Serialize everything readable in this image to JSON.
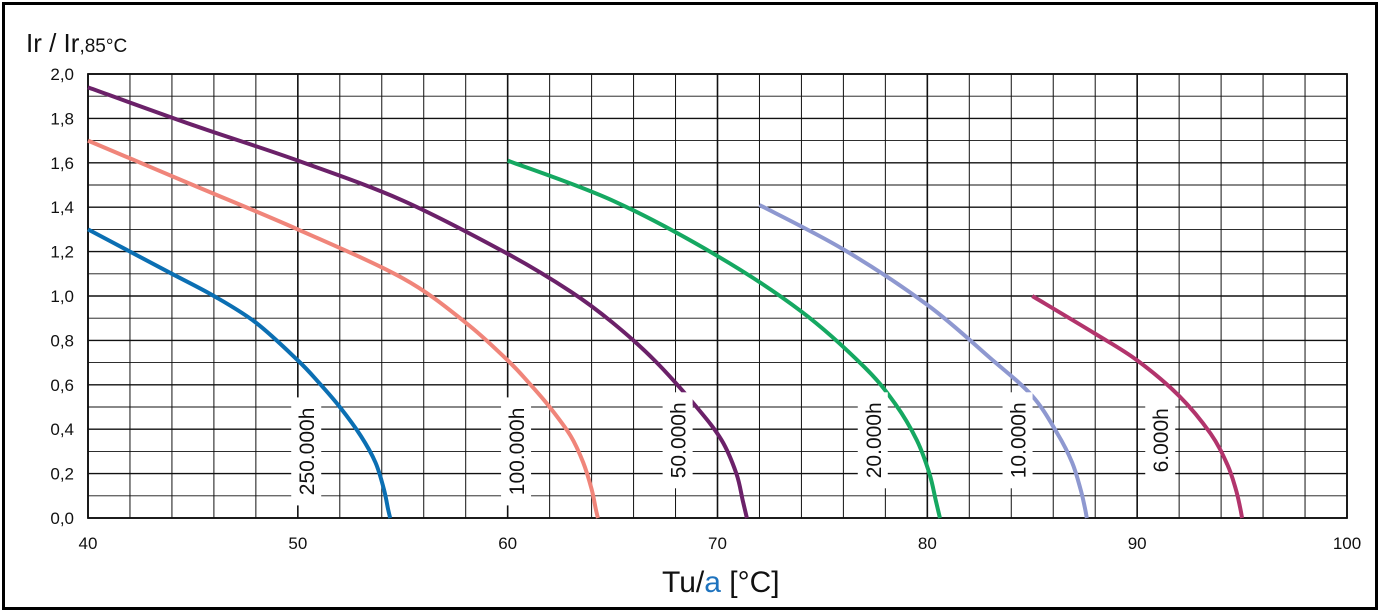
{
  "chart_data": {
    "type": "line",
    "ylabel_main": "Ir / Ir",
    "ylabel_sub": ",85°C",
    "xlabel_main": "Tu/",
    "xlabel_accent": "a",
    "xlabel_unit": " [°C]",
    "xlabel_accent_color": "#1e73be",
    "xlim": [
      40,
      100
    ],
    "ylim": [
      0,
      2.0
    ],
    "x_ticks": [
      "40",
      "50",
      "60",
      "70",
      "80",
      "90",
      "100"
    ],
    "y_ticks": [
      "0,0",
      "0,2",
      "0,4",
      "0,6",
      "0,8",
      "1,0",
      "1,2",
      "1,4",
      "1,6",
      "1,8",
      "2,0"
    ],
    "grid": true,
    "series": [
      {
        "name": "250.000h",
        "color": "#0b6fb3",
        "label_x": 50.4,
        "label_y": 0.3,
        "x": [
          40,
          42,
          44,
          46,
          48,
          50,
          51,
          52,
          53,
          53.7,
          54.1,
          54.3,
          54.4
        ],
        "y": [
          1.3,
          1.2,
          1.1,
          1.0,
          0.88,
          0.71,
          0.61,
          0.5,
          0.37,
          0.25,
          0.13,
          0.04,
          0.0
        ]
      },
      {
        "name": "100.000h",
        "color": "#f0857a",
        "label_x": 60.4,
        "label_y": 0.3,
        "x": [
          40,
          45,
          50,
          55,
          58,
          60,
          61,
          62,
          63,
          63.6,
          64.0,
          64.2,
          64.3
        ],
        "y": [
          1.7,
          1.5,
          1.3,
          1.08,
          0.88,
          0.71,
          0.61,
          0.5,
          0.37,
          0.25,
          0.13,
          0.04,
          0.0
        ]
      },
      {
        "name": "50.000h",
        "color": "#6b2169",
        "label_x": 68.1,
        "label_y": 0.35,
        "x": [
          40,
          45,
          50,
          55,
          60,
          63,
          65,
          67,
          69,
          70.2,
          70.9,
          71.2,
          71.4
        ],
        "y": [
          1.94,
          1.77,
          1.61,
          1.43,
          1.19,
          1.02,
          0.88,
          0.71,
          0.5,
          0.35,
          0.2,
          0.08,
          0.0
        ]
      },
      {
        "name": "20.000h",
        "color": "#15a861",
        "label_x": 77.4,
        "label_y": 0.35,
        "x": [
          60,
          65,
          70,
          74,
          77,
          78.5,
          79.5,
          80.1,
          80.4,
          80.6
        ],
        "y": [
          1.61,
          1.43,
          1.18,
          0.93,
          0.68,
          0.51,
          0.35,
          0.2,
          0.08,
          0.0
        ]
      },
      {
        "name": "10.000h",
        "color": "#8e98d0",
        "label_x": 84.3,
        "label_y": 0.35,
        "x": [
          72,
          76,
          80,
          83,
          85,
          86.2,
          86.9,
          87.3,
          87.5,
          87.6
        ],
        "y": [
          1.41,
          1.21,
          0.96,
          0.72,
          0.55,
          0.38,
          0.25,
          0.13,
          0.05,
          0.0
        ]
      },
      {
        "name": "6.000h",
        "color": "#b2346c",
        "label_x": 91.1,
        "label_y": 0.35,
        "x": [
          85,
          88,
          90,
          92,
          93.5,
          94.3,
          94.7,
          94.9,
          95.0
        ],
        "y": [
          1.0,
          0.83,
          0.71,
          0.55,
          0.38,
          0.24,
          0.13,
          0.05,
          0.0
        ]
      }
    ]
  }
}
